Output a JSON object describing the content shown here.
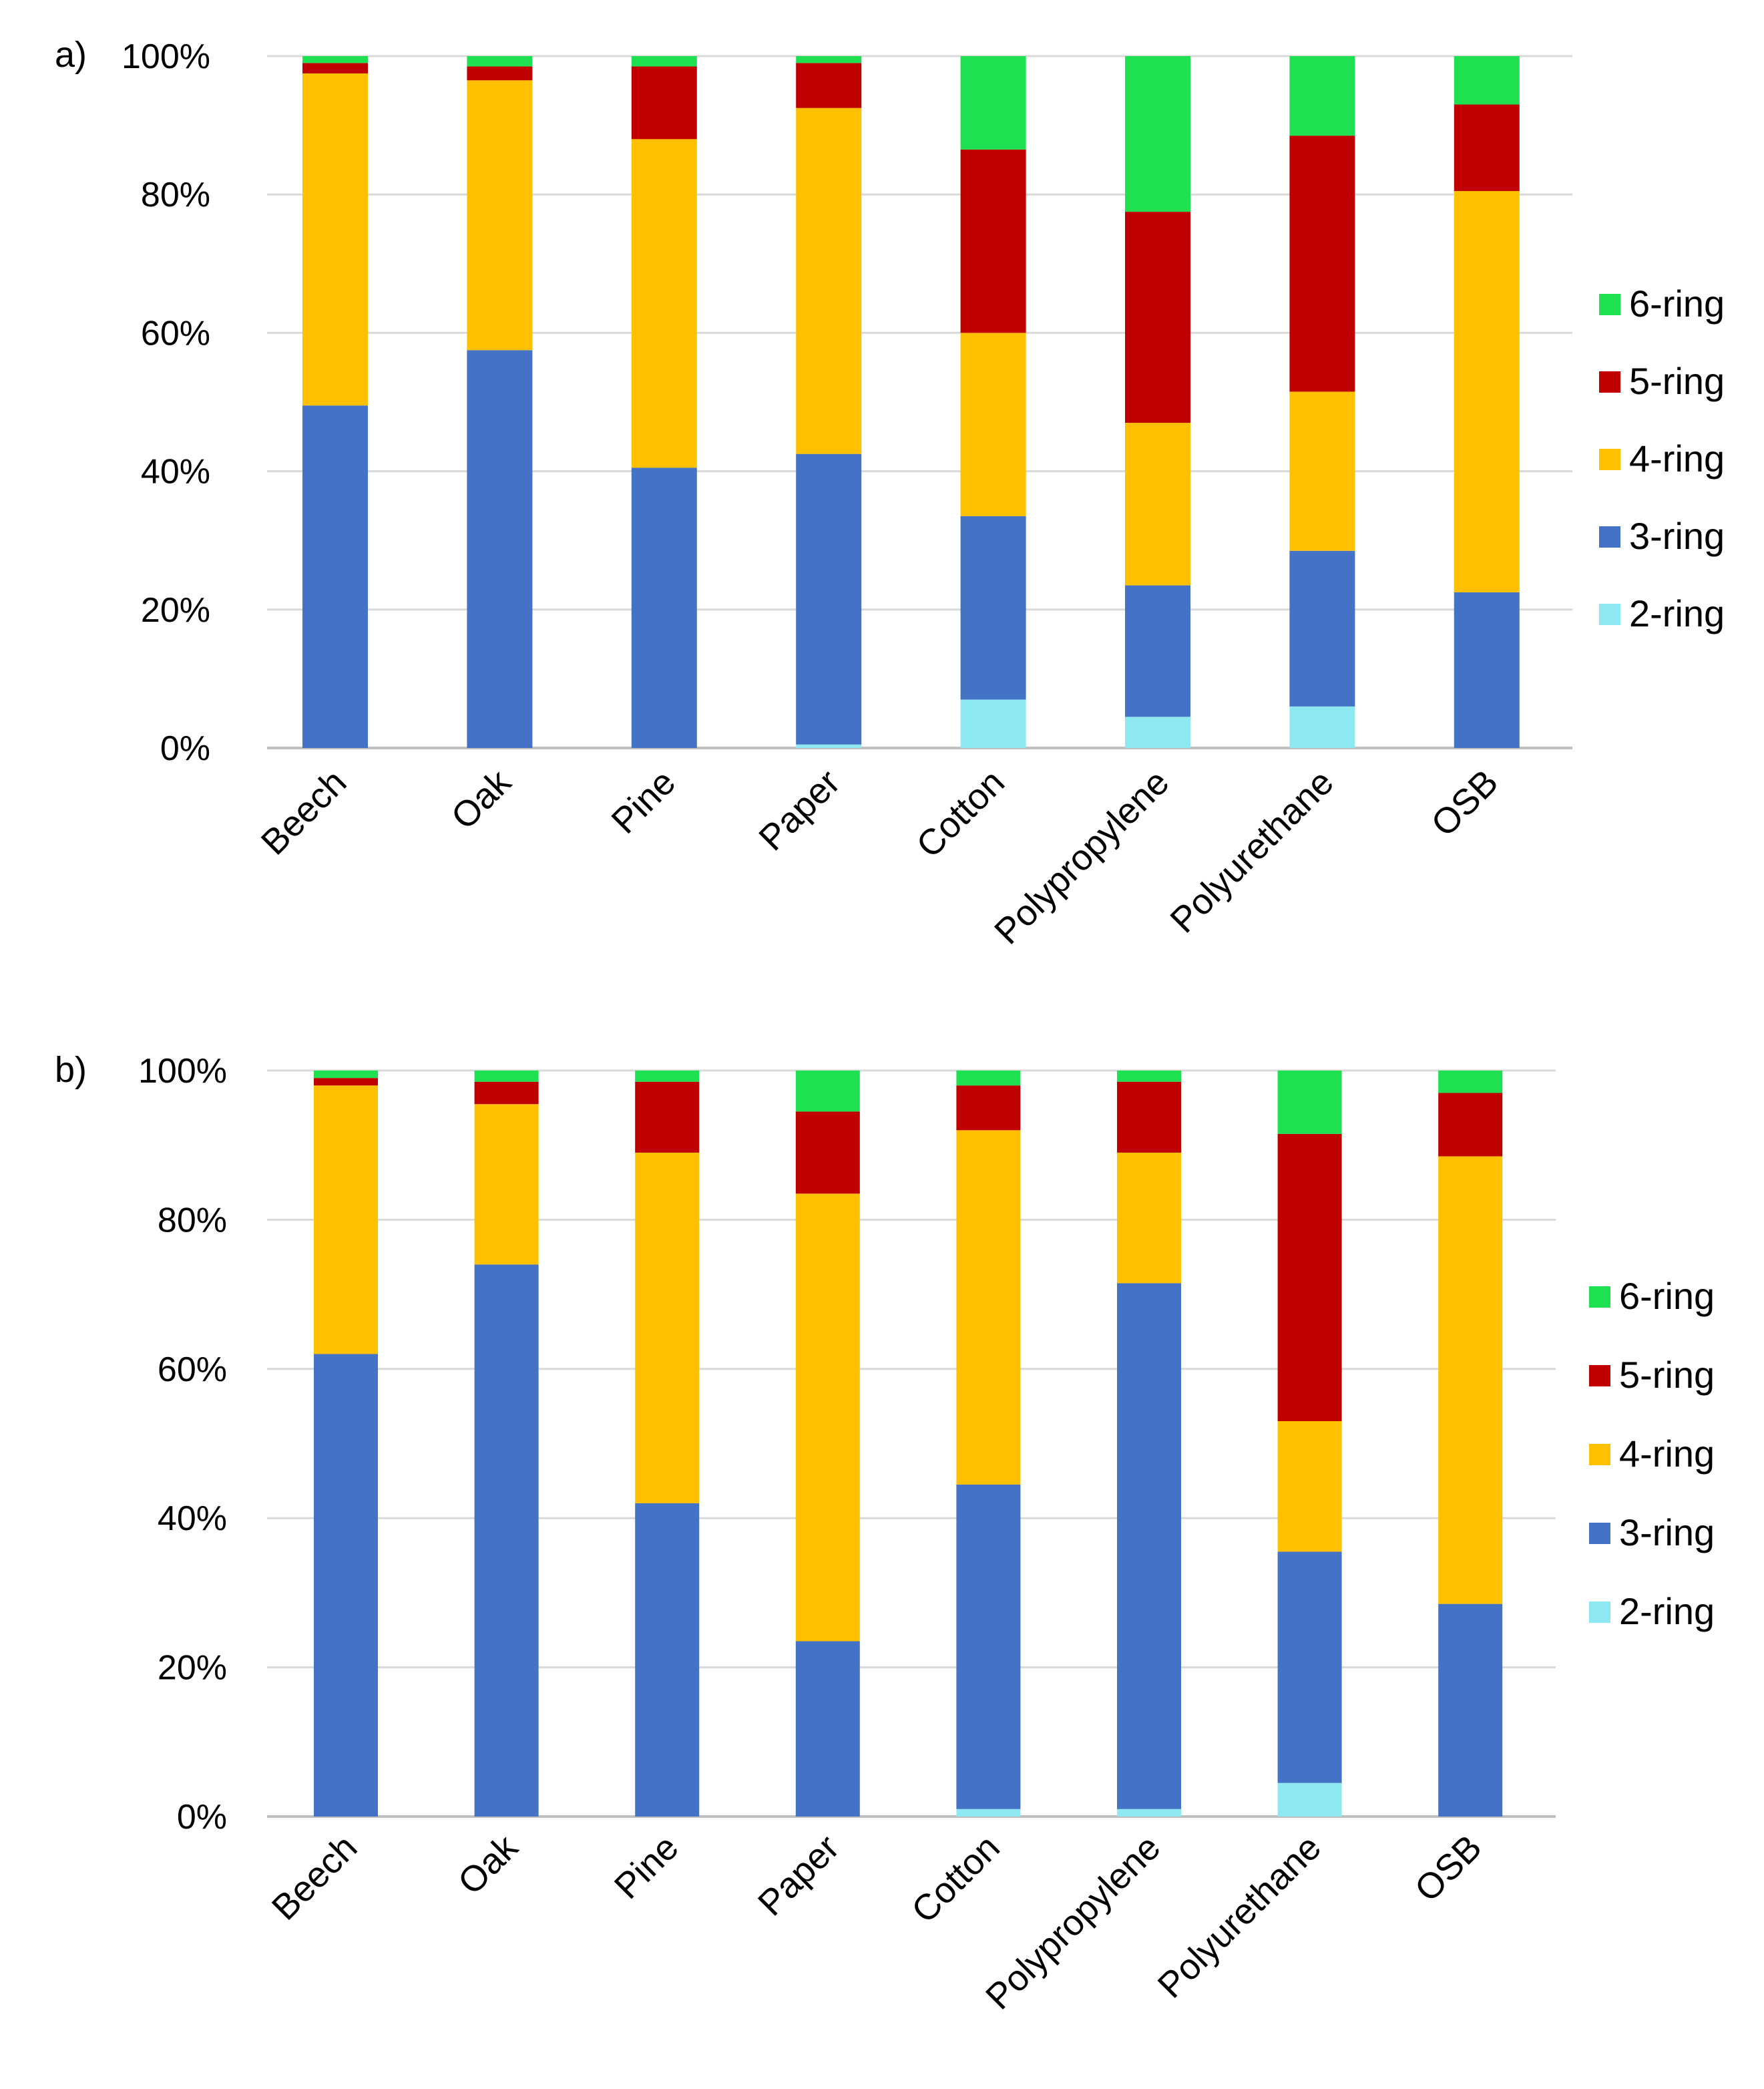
{
  "chart_data": [
    {
      "panel_label": "a)",
      "type": "bar",
      "stacked": true,
      "ylim": [
        0,
        100
      ],
      "yticks": [
        "0%",
        "20%",
        "40%",
        "60%",
        "80%",
        "100%"
      ],
      "grid": true,
      "legend": "right",
      "categories": [
        "Beech",
        "Oak",
        "Pine",
        "Paper",
        "Cotton",
        "Polypropylene",
        "Polyurethane",
        "OSB"
      ],
      "series": [
        {
          "name": "2-ring",
          "color": "#8EE8F2",
          "values": [
            0,
            0,
            0,
            0.5,
            7,
            4.5,
            6,
            0
          ]
        },
        {
          "name": "3-ring",
          "color": "#4472C4",
          "values": [
            49.5,
            57.5,
            40.5,
            42,
            26.5,
            19,
            22.5,
            22.5
          ]
        },
        {
          "name": "4-ring",
          "color": "#FFC000",
          "values": [
            48,
            39,
            47.5,
            50,
            26.5,
            23.5,
            23,
            58
          ]
        },
        {
          "name": "5-ring",
          "color": "#C00000",
          "values": [
            1.5,
            2,
            10.5,
            6.5,
            26.5,
            30.5,
            37,
            12.5
          ]
        },
        {
          "name": "6-ring",
          "color": "#1FE050",
          "values": [
            1,
            1.5,
            1.5,
            1,
            13.5,
            22.5,
            11.5,
            7
          ]
        }
      ]
    },
    {
      "panel_label": "b)",
      "type": "bar",
      "stacked": true,
      "ylim": [
        0,
        100
      ],
      "yticks": [
        "0%",
        "20%",
        "40%",
        "60%",
        "80%",
        "100%"
      ],
      "grid": true,
      "legend": "right",
      "categories": [
        "Beech",
        "Oak",
        "Pine",
        "Paper",
        "Cotton",
        "Polypropylene",
        "Polyurethane",
        "OSB"
      ],
      "series": [
        {
          "name": "2-ring",
          "color": "#8EE8F2",
          "values": [
            0,
            0,
            0,
            0,
            1,
            1,
            4.5,
            0
          ]
        },
        {
          "name": "3-ring",
          "color": "#4472C4",
          "values": [
            62,
            74,
            42,
            23.5,
            43.5,
            70.5,
            31,
            28.5
          ]
        },
        {
          "name": "4-ring",
          "color": "#FFC000",
          "values": [
            36,
            21.5,
            47,
            60,
            47.5,
            17.5,
            17.5,
            60
          ]
        },
        {
          "name": "5-ring",
          "color": "#C00000",
          "values": [
            1,
            3,
            9.5,
            11,
            6,
            9.5,
            38.5,
            8.5
          ]
        },
        {
          "name": "6-ring",
          "color": "#1FE050",
          "values": [
            1,
            1.5,
            1.5,
            5.5,
            2,
            1.5,
            8.5,
            3
          ]
        }
      ]
    }
  ]
}
